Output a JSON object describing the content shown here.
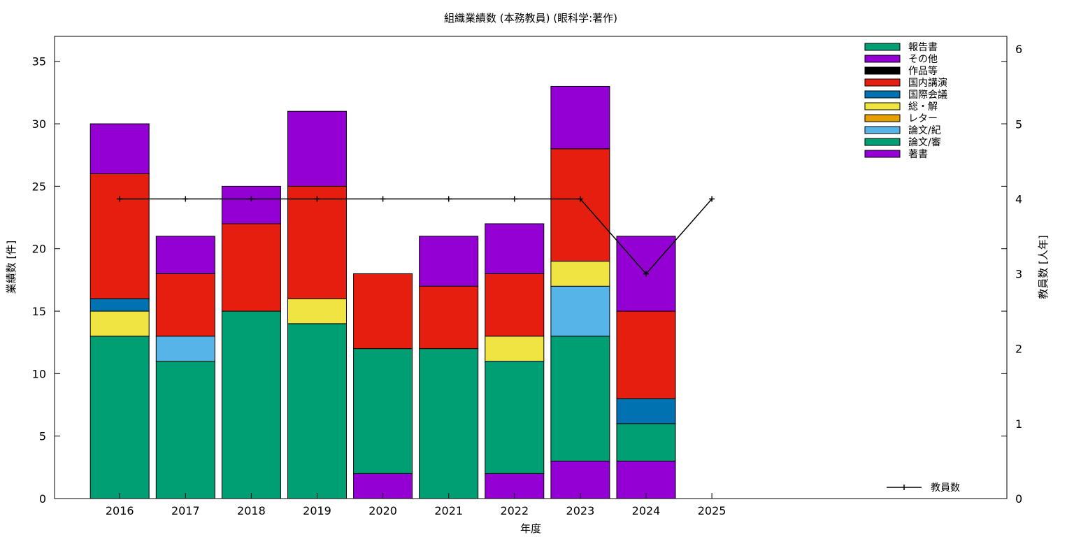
{
  "chart_data": {
    "type": "bar",
    "title": "組織業績数 (本務教員) (眼科学:著作)",
    "xlabel": "年度",
    "ylabel": "業績数 [件]",
    "y2label": "教員数 [人年]",
    "categories": [
      "2016",
      "2017",
      "2018",
      "2019",
      "2020",
      "2021",
      "2022",
      "2023",
      "2024",
      "2025"
    ],
    "ylim": [
      0,
      37
    ],
    "y2lim": [
      0,
      6.17
    ],
    "yticks": [
      0,
      5,
      10,
      15,
      20,
      25,
      30,
      35
    ],
    "y2ticks": [
      0,
      1,
      2,
      3,
      4,
      5,
      6
    ],
    "stacked": true,
    "grid": false,
    "legend_position": "top-right",
    "series": [
      {
        "name": "著書",
        "color": "#9400d3",
        "values": [
          0,
          0,
          0,
          0,
          2,
          0,
          2,
          3,
          3,
          0
        ]
      },
      {
        "name": "論文/審",
        "color": "#009e73",
        "values": [
          13,
          11,
          15,
          14,
          10,
          12,
          9,
          10,
          3,
          0
        ]
      },
      {
        "name": "論文/紀",
        "color": "#56b4e9",
        "values": [
          0,
          2,
          0,
          0,
          0,
          0,
          0,
          4,
          0,
          0
        ]
      },
      {
        "name": "レター",
        "color": "#e69f00",
        "values": [
          0,
          0,
          0,
          0,
          0,
          0,
          0,
          0,
          0,
          0
        ]
      },
      {
        "name": "総・解",
        "color": "#f0e442",
        "values": [
          2,
          0,
          0,
          2,
          0,
          0,
          2,
          2,
          0,
          0
        ]
      },
      {
        "name": "国際会議",
        "color": "#0072b2",
        "values": [
          1,
          0,
          0,
          0,
          0,
          0,
          0,
          0,
          2,
          0
        ]
      },
      {
        "name": "国内講演",
        "color": "#e51e10",
        "values": [
          10,
          5,
          7,
          9,
          6,
          5,
          5,
          9,
          7,
          0
        ]
      },
      {
        "name": "作品等",
        "color": "#000000",
        "values": [
          0,
          0,
          0,
          0,
          0,
          0,
          0,
          0,
          0,
          0
        ]
      },
      {
        "name": "その他",
        "color": "#9400d3",
        "values": [
          4,
          3,
          3,
          6,
          0,
          4,
          4,
          5,
          6,
          0
        ]
      },
      {
        "name": "報告書",
        "color": "#009e73",
        "values": [
          0,
          0,
          0,
          0,
          0,
          0,
          0,
          0,
          0,
          0
        ]
      }
    ],
    "line_series": {
      "name": "教員数",
      "axis": "y2",
      "color": "#000000",
      "values": [
        4,
        4,
        4,
        4,
        4,
        4,
        4,
        4,
        3,
        4
      ]
    }
  }
}
